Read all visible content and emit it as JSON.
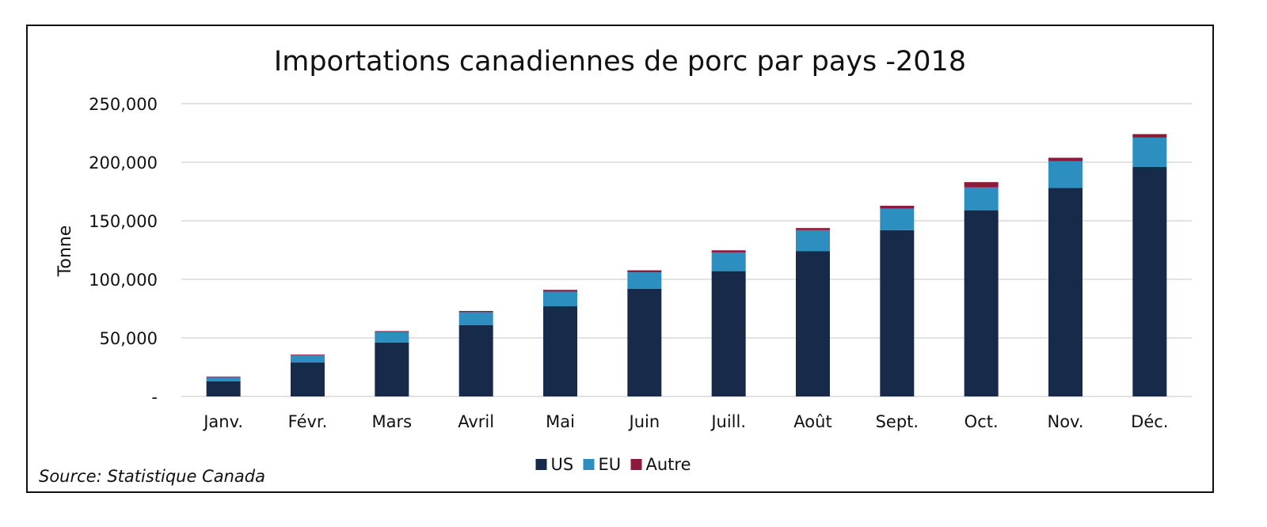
{
  "source": "Source: Statistique Canada",
  "colors": {
    "US": "#172a4a",
    "EU": "#2c8fbf",
    "Autre": "#8b1a3c",
    "grid": "#d9d9d9",
    "text": "#111111"
  },
  "chart_data": {
    "type": "bar",
    "stacked": true,
    "title": "Importations canadiennes de porc par pays -2018",
    "xlabel": "",
    "ylabel": "Tonne",
    "ylim": [
      0,
      250000
    ],
    "yticks": [
      0,
      50000,
      100000,
      150000,
      200000,
      250000
    ],
    "ytick_labels": [
      "-",
      "50,000",
      "100,000",
      "150,000",
      "200,000",
      "250,000"
    ],
    "grid": true,
    "legend": "bottom",
    "categories": [
      "Janv.",
      "Févr.",
      "Mars",
      "Avril",
      "Mai",
      "Juin",
      "Juill.",
      "Août",
      "Sept.",
      "Oct.",
      "Nov.",
      "Déc."
    ],
    "series": [
      {
        "name": "US",
        "values": [
          13000,
          29000,
          46000,
          61000,
          77000,
          92000,
          107000,
          124000,
          142000,
          159000,
          178000,
          196000
        ]
      },
      {
        "name": "EU",
        "values": [
          3500,
          6000,
          9000,
          11000,
          12500,
          14000,
          16000,
          18000,
          18500,
          19500,
          23000,
          25000
        ]
      },
      {
        "name": "Autre",
        "values": [
          500,
          700,
          800,
          1000,
          1500,
          1700,
          1800,
          1800,
          2300,
          4500,
          2800,
          3000
        ]
      }
    ]
  }
}
